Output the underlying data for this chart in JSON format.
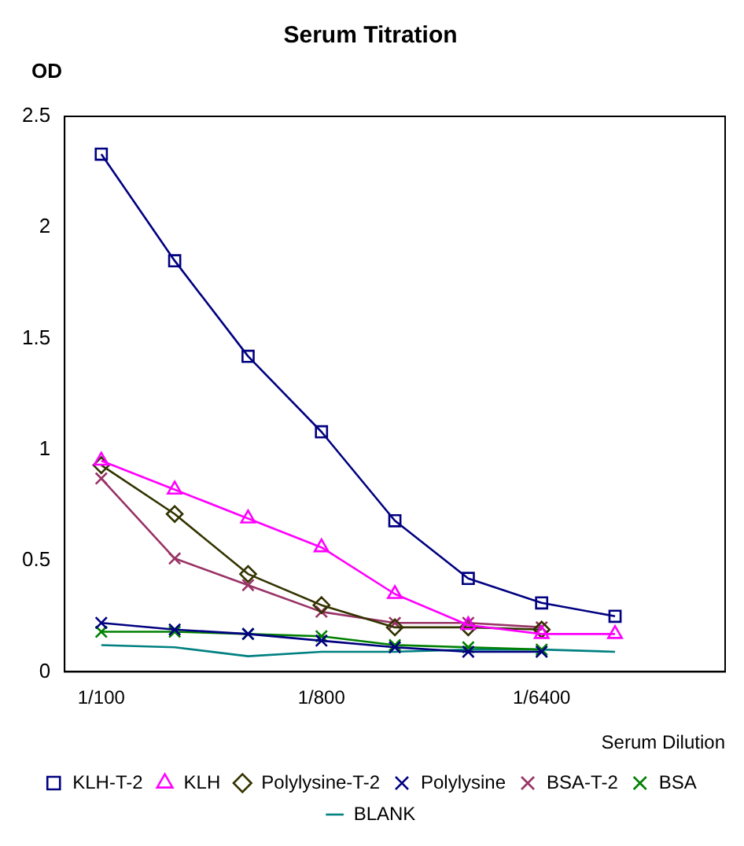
{
  "chart_data": {
    "type": "line",
    "title": "Serum Titration",
    "ylabel": "OD",
    "xlabel": "Serum Dilution",
    "categories": [
      "1/100",
      null,
      null,
      "1/800",
      null,
      null,
      "1/6400",
      null,
      null
    ],
    "ylim": [
      0,
      2.5
    ],
    "yticks": [
      0,
      0.5,
      1,
      1.5,
      2,
      2.5
    ],
    "grid": false,
    "legend": "bottom",
    "line_style": "solid",
    "series": [
      {
        "name": "KLH-T-2",
        "color": "#000080",
        "marker": "square",
        "values": [
          2.33,
          1.85,
          1.42,
          1.08,
          0.68,
          0.42,
          0.31,
          0.25,
          null
        ]
      },
      {
        "name": "KLH",
        "color": "#ff00ff",
        "marker": "triangle",
        "values": [
          0.95,
          0.82,
          0.69,
          0.56,
          0.35,
          0.21,
          0.17,
          0.17,
          null
        ]
      },
      {
        "name": "Polylysine-T-2",
        "color": "#333300",
        "marker": "diamond",
        "values": [
          0.93,
          0.71,
          0.44,
          0.3,
          0.2,
          0.2,
          0.19,
          null,
          null
        ]
      },
      {
        "name": "Polylysine",
        "color": "#000080",
        "marker": "cross",
        "values": [
          0.22,
          0.19,
          0.17,
          0.14,
          0.11,
          0.09,
          0.09,
          null,
          null
        ]
      },
      {
        "name": "BSA-T-2",
        "color": "#993366",
        "marker": "cross",
        "values": [
          0.87,
          0.51,
          0.39,
          0.27,
          0.22,
          0.22,
          0.2,
          null,
          null
        ]
      },
      {
        "name": "BSA",
        "color": "#008000",
        "marker": "cross",
        "values": [
          0.18,
          0.18,
          0.17,
          0.16,
          0.12,
          0.11,
          0.1,
          null,
          null
        ]
      },
      {
        "name": "BLANK",
        "color": "#008080",
        "marker": "none",
        "values": [
          0.12,
          0.11,
          0.07,
          0.09,
          0.09,
          0.1,
          0.1,
          0.09,
          null
        ]
      }
    ]
  }
}
